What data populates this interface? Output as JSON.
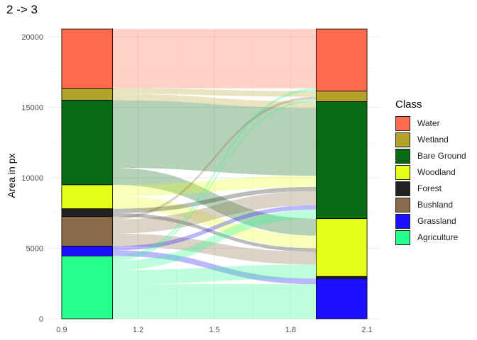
{
  "chart_data": {
    "type": "alluvial",
    "title": "2 -> 3",
    "ylabel": "Area in px",
    "xlabel": "",
    "x_ticks": [
      "0.9",
      "1.2",
      "1.5",
      "1.8",
      "2.1"
    ],
    "y_ticks": [
      "0",
      "5000",
      "10000",
      "15000",
      "20000"
    ],
    "ylim": [
      0,
      20500
    ],
    "xlim": [
      0.85,
      2.15
    ],
    "legend": {
      "title": "Class",
      "position": "right"
    },
    "classes": [
      {
        "name": "Water",
        "color": "#FF6A4D"
      },
      {
        "name": "Wetland",
        "color": "#B5A22B"
      },
      {
        "name": "Bare Ground",
        "color": "#0A6A14"
      },
      {
        "name": "Woodland",
        "color": "#E5FF1A"
      },
      {
        "name": "Forest",
        "color": "#222222"
      },
      {
        "name": "Bushland",
        "color": "#8A6A48"
      },
      {
        "name": "Grassland",
        "color": "#1A10FF"
      },
      {
        "name": "Agriculture",
        "color": "#26FF8A"
      }
    ],
    "stratum_left": [
      {
        "class": "Water",
        "value": 4200
      },
      {
        "class": "Wetland",
        "value": 850
      },
      {
        "class": "Bare Ground",
        "value": 6000
      },
      {
        "class": "Woodland",
        "value": 1700
      },
      {
        "class": "Forest",
        "value": 550
      },
      {
        "class": "Bushland",
        "value": 2100
      },
      {
        "class": "Grassland",
        "value": 700
      },
      {
        "class": "Agriculture",
        "value": 4450
      }
    ],
    "stratum_right": [
      {
        "class": "Water",
        "value": 4400
      },
      {
        "class": "Wetland",
        "value": 750
      },
      {
        "class": "Bare Ground",
        "value": 8300
      },
      {
        "class": "Woodland",
        "value": 4100
      },
      {
        "class": "Forest",
        "value": 150
      },
      {
        "class": "Bushland",
        "value": 0
      },
      {
        "class": "Grassland",
        "value": 2850
      },
      {
        "class": "Agriculture",
        "value": 0
      }
    ],
    "flows": [
      {
        "from": "Water",
        "to": "Water",
        "value": 4200
      },
      {
        "from": "Wetland",
        "to": "Wetland",
        "value": 400
      },
      {
        "from": "Wetland",
        "to": "Bare Ground",
        "value": 450
      },
      {
        "from": "Bare Ground",
        "to": "Bare Ground",
        "value": 4800
      },
      {
        "from": "Bare Ground",
        "to": "Woodland",
        "value": 1200
      },
      {
        "from": "Woodland",
        "to": "Bare Ground",
        "value": 800
      },
      {
        "from": "Woodland",
        "to": "Woodland",
        "value": 900
      },
      {
        "from": "Forest",
        "to": "Bare Ground",
        "value": 300
      },
      {
        "from": "Forest",
        "to": "Woodland",
        "value": 250
      },
      {
        "from": "Bushland",
        "to": "Wetland",
        "value": 200
      },
      {
        "from": "Bushland",
        "to": "Bare Ground",
        "value": 1000
      },
      {
        "from": "Bushland",
        "to": "Woodland",
        "value": 900
      },
      {
        "from": "Grassland",
        "to": "Bare Ground",
        "value": 300
      },
      {
        "from": "Grassland",
        "to": "Grassland",
        "value": 400
      },
      {
        "from": "Agriculture",
        "to": "Water",
        "value": 200
      },
      {
        "from": "Agriculture",
        "to": "Wetland",
        "value": 150
      },
      {
        "from": "Agriculture",
        "to": "Bare Ground",
        "value": 650
      },
      {
        "from": "Agriculture",
        "to": "Woodland",
        "value": 850
      },
      {
        "from": "Agriculture",
        "to": "Forest",
        "value": 150
      },
      {
        "from": "Agriculture",
        "to": "Grassland",
        "value": 2450
      }
    ]
  }
}
